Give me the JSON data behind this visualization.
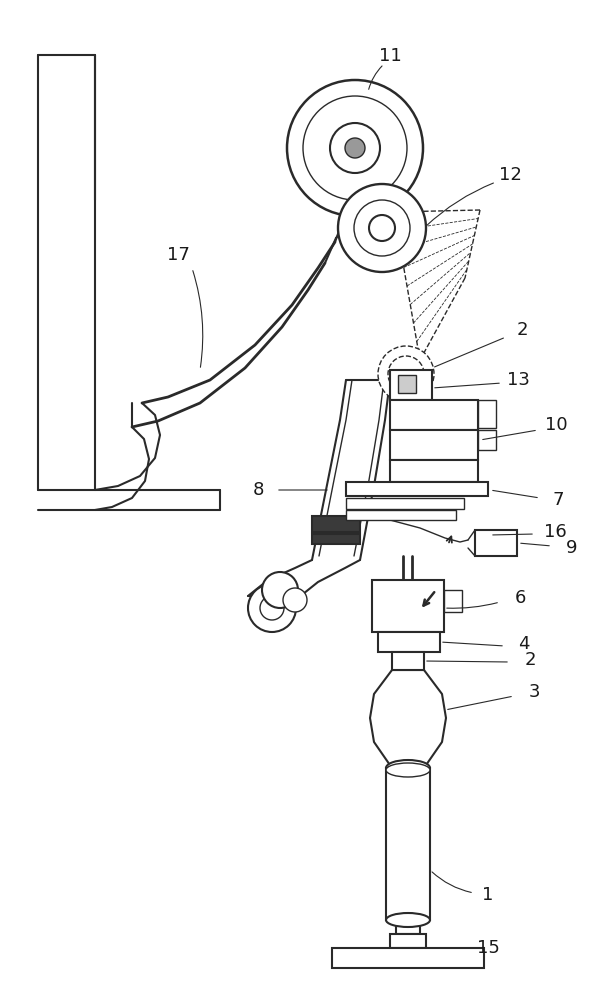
{
  "bg_color": "#ffffff",
  "line_color": "#2a2a2a",
  "label_color": "#1a1a1a",
  "label_fs": 13
}
